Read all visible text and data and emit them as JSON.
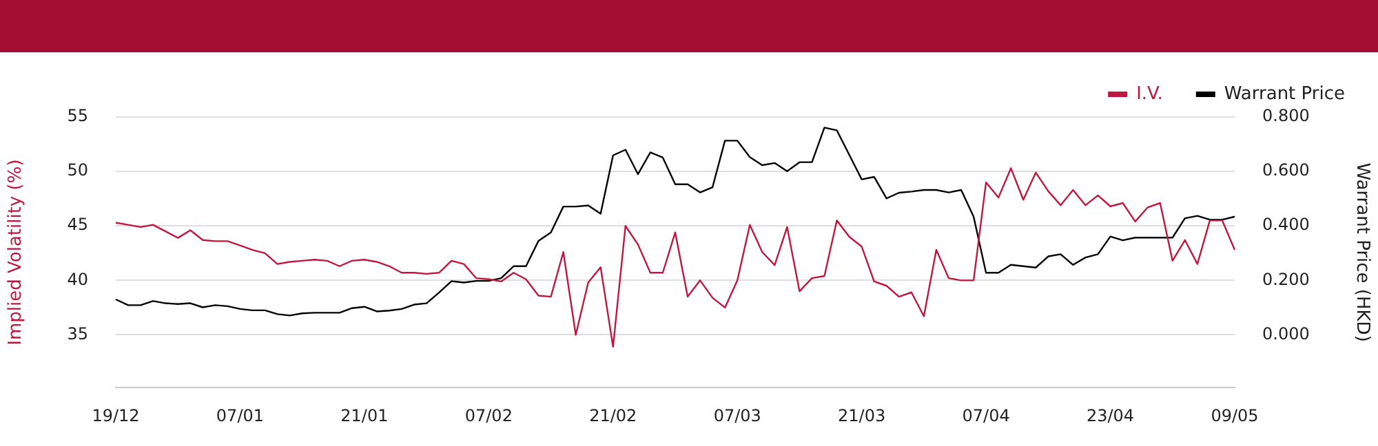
{
  "chart_data": {
    "type": "line",
    "xlabel": null,
    "ylabel": "Implied Volatility (%)",
    "y2label": "Warrant Price (HKD)",
    "categories": [
      "19/12",
      null,
      null,
      null,
      null,
      null,
      null,
      null,
      null,
      null,
      "07/01",
      null,
      null,
      null,
      null,
      null,
      null,
      null,
      null,
      null,
      "21/01",
      null,
      null,
      null,
      null,
      null,
      null,
      null,
      null,
      null,
      "07/02",
      null,
      null,
      null,
      null,
      null,
      null,
      null,
      null,
      null,
      "21/02",
      null,
      null,
      null,
      null,
      null,
      null,
      null,
      null,
      null,
      "07/03",
      null,
      null,
      null,
      null,
      null,
      null,
      null,
      null,
      null,
      "21/03",
      null,
      null,
      null,
      null,
      null,
      null,
      null,
      null,
      null,
      "07/04",
      null,
      null,
      null,
      null,
      null,
      null,
      null,
      null,
      null,
      "23/04",
      null,
      null,
      null,
      null,
      null,
      null,
      null,
      null,
      null,
      "09/05"
    ],
    "series": [
      {
        "name": "I.V.",
        "color": "#c0173f",
        "values": [
          45.3,
          45.1,
          44.9,
          45.1,
          44.5,
          43.9,
          44.6,
          43.7,
          43.6,
          43.6,
          43.2,
          42.8,
          42.5,
          41.5,
          41.7,
          41.8,
          41.9,
          41.8,
          41.3,
          41.8,
          41.9,
          41.7,
          41.3,
          40.7,
          40.7,
          40.6,
          40.7,
          41.8,
          41.5,
          40.2,
          40.1,
          39.9,
          40.7,
          40.1,
          38.6,
          38.5,
          42.6,
          35.0,
          39.8,
          41.2,
          33.9,
          45.0,
          43.3,
          40.7,
          40.7,
          44.4,
          38.5,
          40.0,
          38.4,
          37.5,
          40.0,
          45.1,
          42.6,
          41.4,
          44.9,
          39.0,
          40.2,
          40.4,
          45.5,
          44.0,
          43.1,
          39.9,
          39.5,
          38.5,
          38.9,
          36.7,
          42.8,
          40.2,
          40.0,
          40.0,
          49.0,
          47.6,
          50.3,
          47.4,
          49.9,
          48.2,
          46.9,
          48.3,
          46.9,
          47.8,
          46.8,
          47.1,
          45.4,
          46.7,
          47.1,
          41.8,
          43.7,
          41.5,
          45.5,
          45.5,
          42.8
        ]
      },
      {
        "name": "Warrant Price",
        "color": "#000000",
        "axis": "y2",
        "values": [
          0.13,
          0.109,
          0.109,
          0.124,
          0.116,
          0.113,
          0.116,
          0.101,
          0.109,
          0.105,
          0.095,
          0.09,
          0.09,
          0.076,
          0.071,
          0.079,
          0.081,
          0.081,
          0.081,
          0.098,
          0.103,
          0.086,
          0.089,
          0.095,
          0.111,
          0.116,
          0.155,
          0.197,
          0.192,
          0.198,
          0.198,
          0.208,
          0.252,
          0.252,
          0.345,
          0.376,
          0.471,
          0.471,
          0.475,
          0.445,
          0.659,
          0.68,
          0.59,
          0.67,
          0.651,
          0.553,
          0.553,
          0.523,
          0.542,
          0.713,
          0.713,
          0.653,
          0.623,
          0.631,
          0.601,
          0.634,
          0.634,
          0.761,
          0.751,
          0.661,
          0.571,
          0.58,
          0.501,
          0.522,
          0.526,
          0.532,
          0.532,
          0.523,
          0.532,
          0.434,
          0.228,
          0.228,
          0.257,
          0.252,
          0.247,
          0.288,
          0.296,
          0.257,
          0.284,
          0.296,
          0.361,
          0.347,
          0.357,
          0.357,
          0.357,
          0.357,
          0.428,
          0.437,
          0.423,
          0.423,
          0.434
        ]
      }
    ],
    "ylim": [
      30.15,
      55
    ],
    "yticks": [
      35,
      40,
      45,
      50,
      55
    ],
    "y2lim": [
      -0.194,
      0.8
    ],
    "y2ticks": [
      {
        "value": 0,
        "label": "0.000"
      },
      {
        "value": 0.2,
        "label": "0.200"
      },
      {
        "value": 0.4,
        "label": "0.400"
      },
      {
        "value": 0.6,
        "label": "0.600"
      },
      {
        "value": 0.8,
        "label": "0.800"
      }
    ],
    "grid": "y",
    "legend": "top right",
    "marker": "none",
    "line_style": "solid"
  }
}
